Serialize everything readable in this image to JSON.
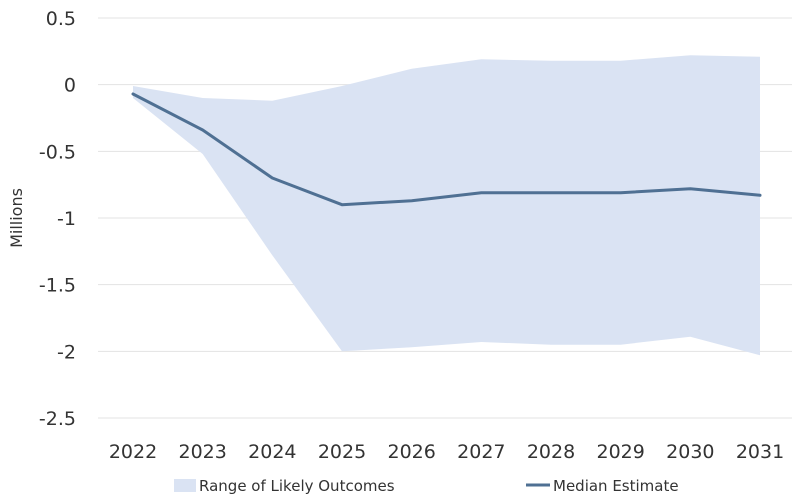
{
  "chart_data": {
    "type": "area",
    "title": "",
    "xlabel": "",
    "ylabel": "Millions",
    "ylim": [
      -2.5,
      0.5
    ],
    "yticks": [
      0.5,
      0,
      -0.5,
      -1,
      -1.5,
      -2,
      -2.5
    ],
    "ytick_labels": [
      "0.5",
      "0",
      "-0.5",
      "-1",
      "-1.5",
      "-2",
      "-2.5"
    ],
    "categories": [
      "2022",
      "2023",
      "2024",
      "2025",
      "2026",
      "2027",
      "2028",
      "2029",
      "2030",
      "2031"
    ],
    "grid": true,
    "legend_position": "bottom",
    "series": [
      {
        "name": "Range of Likely Outcomes",
        "kind": "band",
        "upper": [
          -0.01,
          -0.1,
          -0.12,
          -0.01,
          0.12,
          0.19,
          0.18,
          0.18,
          0.22,
          0.21
        ],
        "lower": [
          -0.1,
          -0.52,
          -1.28,
          -2.0,
          -1.97,
          -1.93,
          -1.95,
          -1.95,
          -1.89,
          -2.03
        ],
        "color": "#dae3f3"
      },
      {
        "name": "Median Estimate",
        "kind": "line",
        "values": [
          -0.07,
          -0.34,
          -0.7,
          -0.9,
          -0.87,
          -0.81,
          -0.81,
          -0.81,
          -0.78,
          -0.83
        ],
        "color": "#4f7093"
      }
    ]
  }
}
